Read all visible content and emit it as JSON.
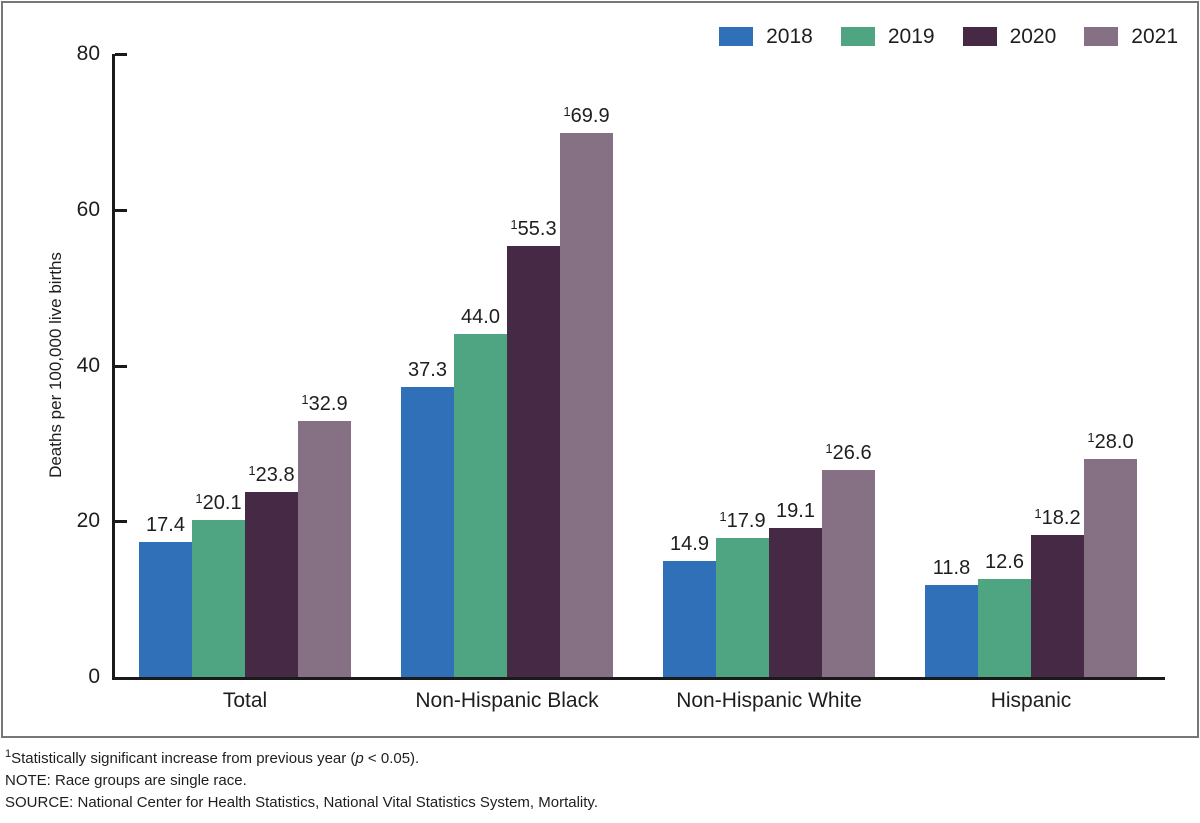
{
  "chart_data": {
    "type": "bar",
    "title": "",
    "ylabel": "Deaths per 100,000 live births",
    "xlabel": "",
    "ylim": [
      0,
      80
    ],
    "yticks": [
      0,
      20,
      40,
      60,
      80
    ],
    "grid": false,
    "legend_position": "top-right",
    "significance_marker": "1",
    "categories": [
      "Total",
      "Non-Hispanic Black",
      "Non-Hispanic White",
      "Hispanic"
    ],
    "series": [
      {
        "name": "2018",
        "color": "#2F70B9",
        "values": [
          17.4,
          37.3,
          14.9,
          11.8
        ],
        "significant": [
          false,
          false,
          false,
          false
        ]
      },
      {
        "name": "2019",
        "color": "#4FA581",
        "values": [
          20.1,
          44.0,
          17.9,
          12.6
        ],
        "significant": [
          true,
          false,
          true,
          false
        ]
      },
      {
        "name": "2020",
        "color": "#462944",
        "values": [
          23.8,
          55.3,
          19.1,
          18.2
        ],
        "significant": [
          true,
          true,
          false,
          true
        ]
      },
      {
        "name": "2021",
        "color": "#857183",
        "values": [
          32.9,
          69.9,
          26.6,
          28.0
        ],
        "significant": [
          true,
          true,
          true,
          true
        ]
      }
    ]
  },
  "axis": {
    "color": "#1a1a1a"
  },
  "footnotes": {
    "significance": {
      "sup": "1",
      "text_before_p": "Statistically significant increase from previous year (",
      "p": "p",
      "text_after_p": " < 0.05)."
    },
    "note": "NOTE: Race groups are single race.",
    "source": "SOURCE: National Center for Health Statistics, National Vital Statistics System, Mortality."
  }
}
